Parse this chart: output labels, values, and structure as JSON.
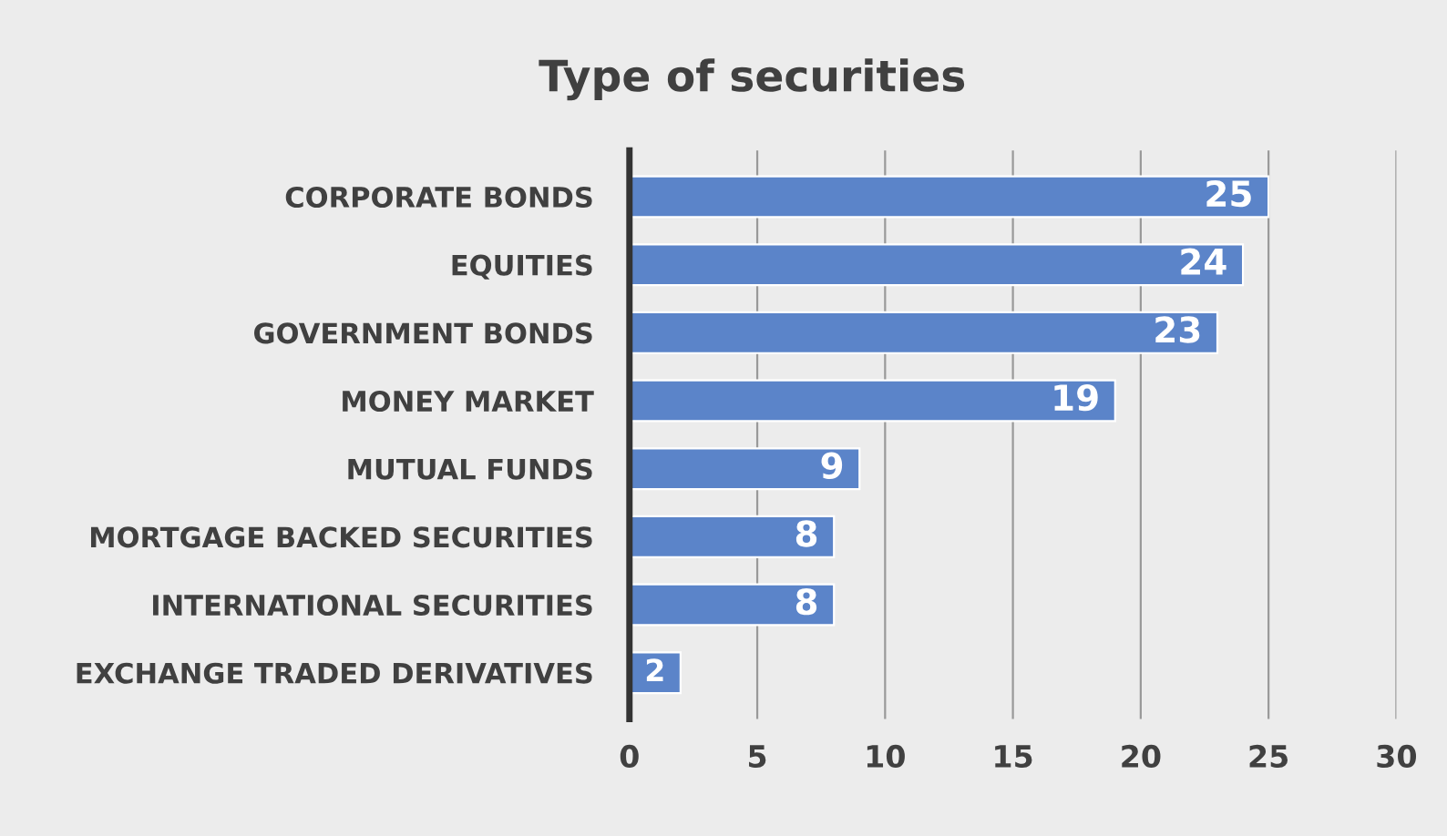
{
  "chart_data": {
    "type": "bar",
    "orientation": "horizontal",
    "title": "Type of securities",
    "categories": [
      "CORPORATE BONDS",
      "EQUITIES",
      "GOVERNMENT BONDS",
      "MONEY MARKET",
      "MUTUAL FUNDS",
      "MORTGAGE BACKED SECURITIES",
      "INTERNATIONAL SECURITIES",
      "EXCHANGE TRADED DERIVATIVES"
    ],
    "values": [
      25,
      24,
      23,
      19,
      9,
      8,
      8,
      2
    ],
    "color": "#5b84c9",
    "xlim": [
      0,
      30
    ],
    "xticks": [
      0,
      5,
      10,
      15,
      20,
      25,
      30
    ],
    "grid": "x",
    "data_labels": true
  }
}
